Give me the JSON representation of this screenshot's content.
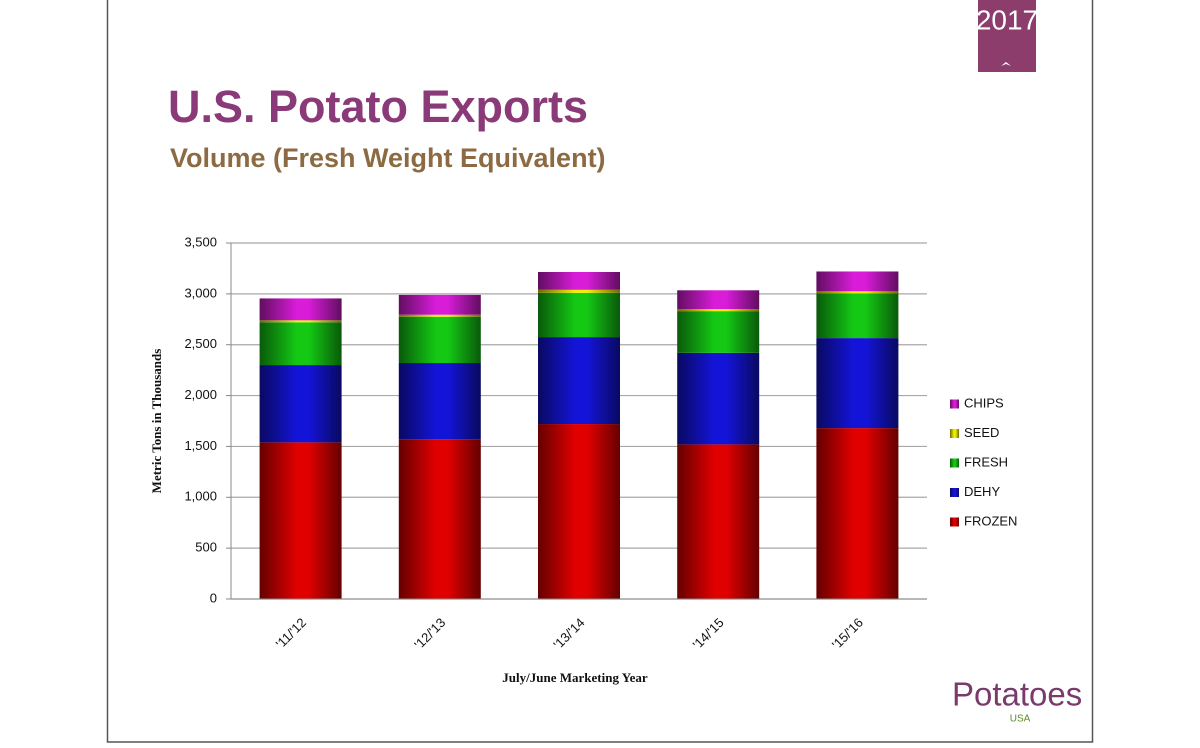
{
  "slide": {
    "badge": "2017",
    "logo": "Potatoes",
    "logo_sub": "USA"
  },
  "chart_data": {
    "type": "stacked_bar",
    "title": "U.S. Potato Exports",
    "subtitle": "Volume (Fresh Weight Equivalent)",
    "y_label": "Metric Tons in Thousands",
    "x_label": "July/June Marketing Year",
    "categories": [
      "'11/'12",
      "'12/'13",
      "'13/'14",
      "'14/'15",
      "'15/'16"
    ],
    "series": [
      {
        "name": "FROZEN",
        "color": "#e00000",
        "values": [
          1540,
          1570,
          1720,
          1520,
          1680
        ]
      },
      {
        "name": "DEHY",
        "color": "#1414d8",
        "values": [
          760,
          750,
          855,
          900,
          885
        ]
      },
      {
        "name": "FRESH",
        "color": "#14c814",
        "values": [
          420,
          455,
          435,
          410,
          440
        ]
      },
      {
        "name": "SEED",
        "color": "#f0f000",
        "values": [
          20,
          20,
          30,
          20,
          20
        ]
      },
      {
        "name": "CHIPS",
        "color": "#d81cd8",
        "values": [
          215,
          195,
          175,
          185,
          195
        ]
      }
    ],
    "ylim": [
      0,
      3500
    ],
    "yticks": [
      0,
      500,
      {
        "value": 1000,
        "label": "1,000"
      },
      {
        "value": 1500,
        "label": "1,500"
      },
      {
        "value": 2000,
        "label": "2,000"
      },
      {
        "value": 2500,
        "label": "2,500"
      },
      {
        "value": 3000,
        "label": "3,000"
      },
      {
        "value": 3500,
        "label": "3,500"
      }
    ],
    "grid": true,
    "legend": "right"
  }
}
